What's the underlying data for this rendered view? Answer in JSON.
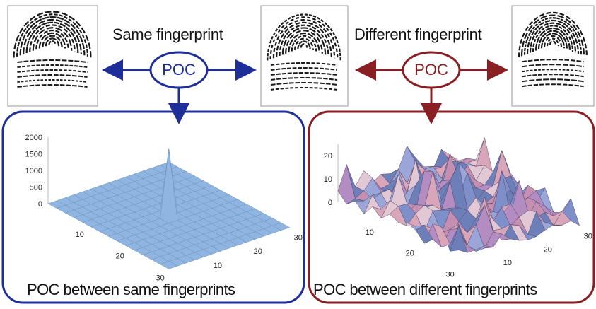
{
  "labels": {
    "same_title": "Same fingerprint",
    "different_title": "Different fingerprint",
    "poc_same": "POC",
    "poc_diff": "POC",
    "caption_same": "POC between same fingerprints",
    "caption_diff": "POC between different fingerprints"
  },
  "colors": {
    "same": "#1f2f9a",
    "different": "#8a1f23",
    "surface_same": "#8fb5e0",
    "surface_diff": "#b38cc2"
  },
  "icons": {
    "fingerprint": "fingerprint-icon"
  },
  "chart_data": [
    {
      "type": "surface",
      "name": "same",
      "z_ticks": [
        "2000",
        "1500",
        "1000",
        "500",
        "0"
      ],
      "x_ticks": [
        "10",
        "20",
        "30"
      ],
      "y_ticks": [
        "10",
        "20",
        "30"
      ],
      "zlim": [
        0,
        2000
      ],
      "peak": 2000
    },
    {
      "type": "surface",
      "name": "different",
      "z_ticks": [
        "20",
        "10",
        "0"
      ],
      "x_ticks": [
        "10",
        "20",
        "30"
      ],
      "y_ticks": [
        "10",
        "20",
        "30"
      ],
      "zlim": [
        0,
        25
      ],
      "peak": 22
    }
  ]
}
